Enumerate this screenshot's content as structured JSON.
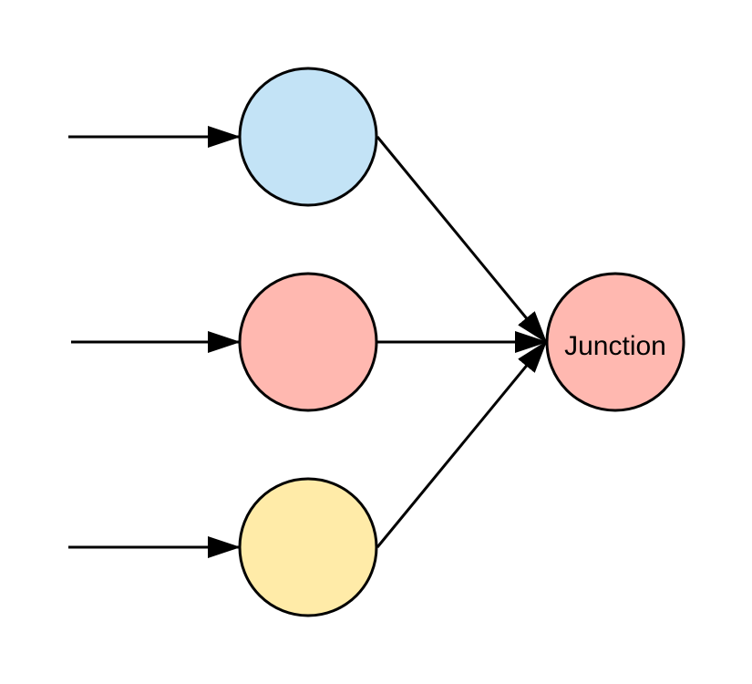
{
  "diagram": {
    "nodes": [
      {
        "id": "top",
        "label": "",
        "fill": "#c3e3f6"
      },
      {
        "id": "middle",
        "label": "",
        "fill": "#ffb8b0"
      },
      {
        "id": "bottom",
        "label": "",
        "fill": "#ffeba8"
      },
      {
        "id": "junction",
        "label": "Junction",
        "fill": "#ffb8b0"
      }
    ],
    "edges": [
      {
        "from": "",
        "to": "top"
      },
      {
        "from": "",
        "to": "middle"
      },
      {
        "from": "",
        "to": "bottom"
      },
      {
        "from": "top",
        "to": "junction"
      },
      {
        "from": "middle",
        "to": "junction"
      },
      {
        "from": "bottom",
        "to": "junction"
      }
    ],
    "stroke_color": "#000000"
  }
}
